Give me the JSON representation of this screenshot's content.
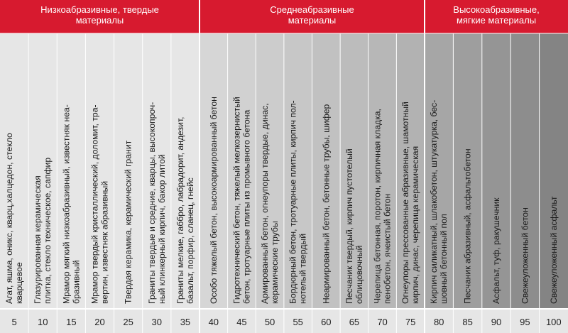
{
  "groups": [
    {
      "title": [
        "Низкоабразивные, твердые",
        "материалы"
      ],
      "columns": [
        {
          "lines": [
            "Агат, яшма, оникс, кварц,халцедон, стекло",
            "кварцевое"
          ],
          "value": "5"
        },
        {
          "lines": [
            "Глазурированная керамическая",
            "плитка, стекло техническое, сапфир"
          ],
          "value": "10"
        },
        {
          "lines": [
            "Мрамор мягкий низкоабразивный, известняк неа-",
            "бразивный"
          ],
          "value": "15"
        },
        {
          "lines": [
            "Мрамор твердый кристаллический, доломит, тра-",
            "вертин, известняк абразивный"
          ],
          "value": "20"
        },
        {
          "lines": [
            "Твердая керамика, керамический гранит"
          ],
          "value": "25"
        },
        {
          "lines": [
            "Граниты твердые и средние, кварцы, высокопроч-",
            "ный клинкерный кирпич, бакор литой"
          ],
          "value": "30"
        },
        {
          "lines": [
            "Граниты мелкие, габбро, лабрадорит, андезит,",
            "базальт, порфир, сланец, гнейс"
          ],
          "value": "35"
        }
      ]
    },
    {
      "title": [
        "Среднеабразивные",
        "материалы"
      ],
      "columns": [
        {
          "lines": [
            "Особо тяжелый бетон, высокоармированный бетон"
          ],
          "value": "40"
        },
        {
          "lines": [
            "Гидротехнический бетон, тяжелый мелкозернистый",
            "бетон, тротуарные плиты из промывного бетона"
          ],
          "value": "45"
        },
        {
          "lines": [
            "Армированный бетон, огнеупоры твердые, динас,",
            "керамические трубы"
          ],
          "value": "50"
        },
        {
          "lines": [
            "Бордюрный бетон, тротуарные плиты, кирпич пол-",
            "нотелый твердый"
          ],
          "value": "55"
        },
        {
          "lines": [
            "Неармированный бетон, бетонные трубы, шифер"
          ],
          "value": "60"
        },
        {
          "lines": [
            "Песчаник твердый, кирпич пустотелый",
            "облицовочный"
          ],
          "value": "65"
        },
        {
          "lines": [
            "Черепица бетонная, поротон, кирпичная кладка,",
            "пенобетон, ячеистый бетон"
          ],
          "value": "70"
        },
        {
          "lines": [
            "Огнеупоры прессованные абразивные, шамотный",
            "кирпич, динас, черепица керамическая"
          ],
          "value": "75"
        }
      ]
    },
    {
      "title": [
        "Высокоабразивные,",
        "мягкие материалы"
      ],
      "columns": [
        {
          "lines": [
            "Кирпич силикатный, шлакобетон, штукатурка, бес-",
            "шовный бетонный пол"
          ],
          "value": "80"
        },
        {
          "lines": [
            "Песчаник абразивный, асфальтобетон"
          ],
          "value": "85"
        },
        {
          "lines": [
            "Асфальт, туф, ракушечник"
          ],
          "value": "90"
        },
        {
          "lines": [
            "Свежеуложенный бетон"
          ],
          "value": "95"
        },
        {
          "lines": [
            "Свежеуложенный асфальт"
          ],
          "value": "100"
        }
      ]
    }
  ]
}
